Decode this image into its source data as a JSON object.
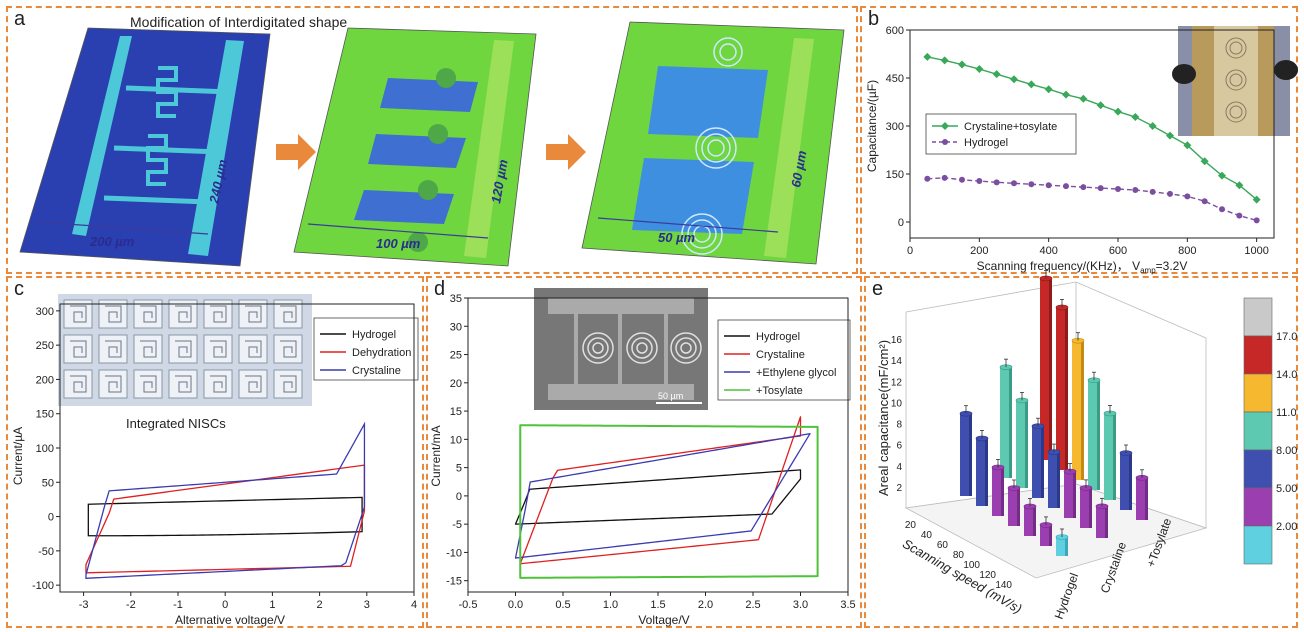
{
  "panels": {
    "a": {
      "letter": "a",
      "title": "Modification of Interdigitated shape",
      "dims": [
        {
          "width": "200 µm",
          "height": "240 µm"
        },
        {
          "width": "100 µm",
          "height": "120 µm"
        },
        {
          "width": "50 µm",
          "height": "60 µm"
        }
      ]
    },
    "b": {
      "letter": "b",
      "chart_data": {
        "type": "line",
        "xlabel": "Scanning frequency/(KHz)，",
        "xlabel_extra": "V",
        "xlabel_sub": "amp",
        "xlabel_tail": "=3.2V",
        "ylabel": "Capacitance/(µF)",
        "xlim": [
          0,
          1050
        ],
        "ylim": [
          -50,
          600
        ],
        "xticks": [
          0,
          200,
          400,
          600,
          800,
          1000
        ],
        "yticks": [
          0,
          150,
          300,
          450,
          600
        ],
        "legend": "middle-left",
        "series": [
          {
            "name": "Crystaline+tosylate",
            "color": "#3aa85a",
            "x": [
              50,
              100,
              150,
              200,
              250,
              300,
              350,
              400,
              450,
              500,
              550,
              600,
              650,
              700,
              750,
              800,
              850,
              900,
              950,
              1000
            ],
            "y": [
              516,
              505,
              492,
              478,
              462,
              446,
              430,
              415,
              398,
              385,
              365,
              345,
              328,
              300,
              270,
              240,
              190,
              145,
              115,
              70
            ]
          },
          {
            "name": "Hydrogel",
            "color": "#7b4fa0",
            "x": [
              50,
              100,
              150,
              200,
              250,
              300,
              350,
              400,
              450,
              500,
              550,
              600,
              650,
              700,
              750,
              800,
              850,
              900,
              950,
              1000
            ],
            "y": [
              135,
              138,
              132,
              128,
              124,
              121,
              118,
              115,
              112,
              109,
              106,
              103,
              100,
              94,
              88,
              80,
              65,
              40,
              20,
              5
            ]
          }
        ]
      }
    },
    "c": {
      "letter": "c",
      "inset_caption": "Integrated NISCs",
      "chart_data": {
        "type": "line",
        "xlabel": "Alternative voltage/V",
        "ylabel": "Current/µA",
        "xlim": [
          -3.5,
          4
        ],
        "ylim": [
          -110,
          310
        ],
        "xticks": [
          -3,
          -2,
          -1,
          0,
          1,
          2,
          3,
          4
        ],
        "yticks": [
          -100,
          -50,
          0,
          50,
          100,
          150,
          200,
          250,
          300
        ],
        "legend": "top-right",
        "series": [
          {
            "name": "Hydrogel",
            "color": "#111111"
          },
          {
            "name": "Dehydration",
            "color": "#e02020"
          },
          {
            "name": "Crystaline",
            "color": "#3b3bb0"
          }
        ]
      }
    },
    "d": {
      "letter": "d",
      "scalebar": "50 µm",
      "chart_data": {
        "type": "line",
        "xlabel": "Voltage/V",
        "ylabel": "Current/mA",
        "xlim": [
          -0.5,
          3.5
        ],
        "ylim": [
          -17,
          35
        ],
        "xticks": [
          -0.5,
          0.0,
          0.5,
          1.0,
          1.5,
          2.0,
          2.5,
          3.0,
          3.5
        ],
        "yticks": [
          -15,
          -10,
          -5,
          0,
          5,
          10,
          15,
          20,
          25,
          30,
          35
        ],
        "legend": "top-right",
        "series": [
          {
            "name": "Hydrogel",
            "color": "#111111"
          },
          {
            "name": "Crystaline",
            "color": "#e02020"
          },
          {
            "name": "+Ethylene glycol",
            "color": "#3b3bb0"
          },
          {
            "name": "+Tosylate",
            "color": "#4fc23a"
          }
        ]
      }
    },
    "e": {
      "letter": "e",
      "chart_data": {
        "type": "bar",
        "zlabel": "Areal capacitance(mF/cm²)",
        "xlabel": "Scanning speed (mV/s)",
        "yticks_text": [
          "Hydrogel",
          "Crystaline",
          "+Tosylate"
        ],
        "xticks": [
          "20",
          "40",
          "60",
          "80",
          "100",
          "120",
          "140"
        ],
        "zticks": [
          2,
          4,
          6,
          8,
          10,
          12,
          14,
          16
        ],
        "colorbar": [
          "17.0",
          "14.0",
          "11.0",
          "8.00",
          "5.00",
          "2.00"
        ],
        "colorbar_colors": [
          "#c9c9c9",
          "#c62828",
          "#f5b82e",
          "#5cc9b0",
          "#3f4fb0",
          "#9b3fb0",
          "#5fd0e0"
        ],
        "series": [
          {
            "name": "Hydrogel",
            "values": [
              7.8,
              6.4,
              4.6,
              3.6,
              2.8,
              2.0,
              1.8
            ]
          },
          {
            "name": "Crystaline",
            "values": [
              10.5,
              8.3,
              6.8,
              5.3,
              4.4,
              3.8,
              3.0
            ]
          },
          {
            "name": "+Tosylate",
            "values": [
              17.2,
              15.4,
              13.2,
              10.4,
              8.2,
              5.4,
              4.0
            ]
          }
        ]
      }
    }
  }
}
